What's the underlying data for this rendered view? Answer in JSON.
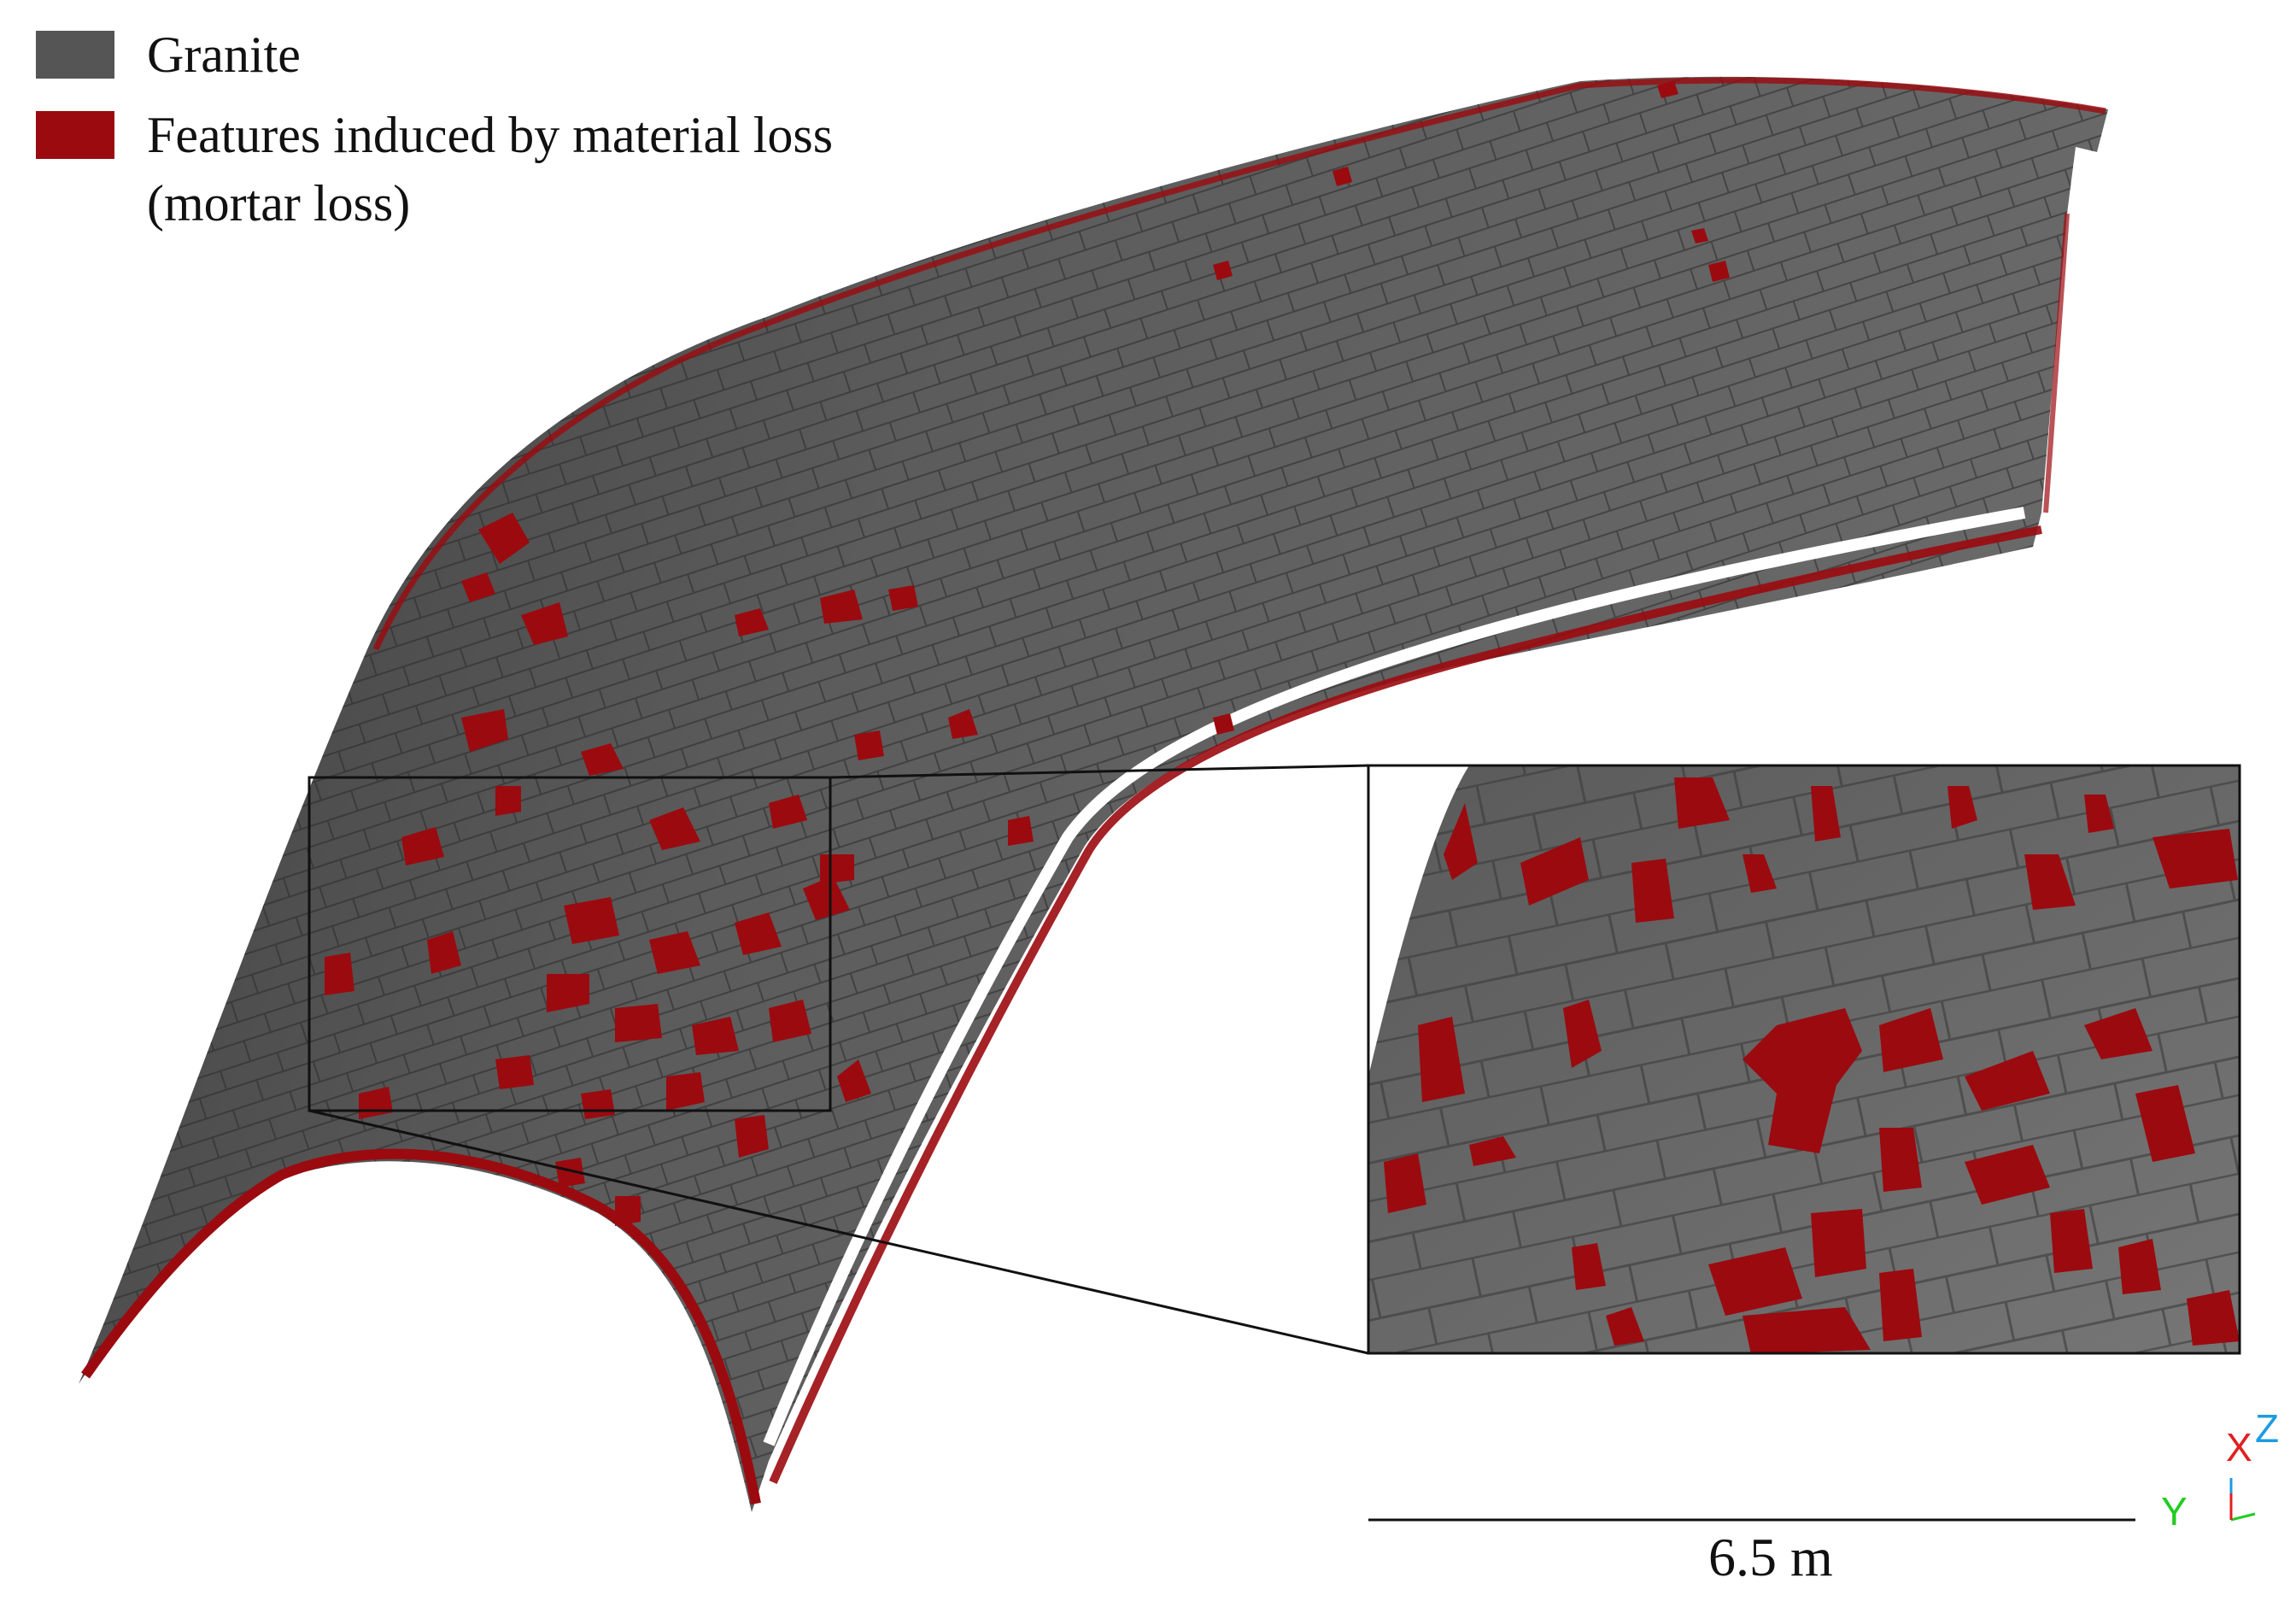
{
  "legend": {
    "items": [
      {
        "label": "Granite",
        "color": "#555555"
      },
      {
        "label": "Features induced by material loss\n(mortar loss)",
        "color": "#9b0a0f"
      }
    ]
  },
  "scale_bar": {
    "label": "6.5 m"
  },
  "axes_triad": {
    "x": "X",
    "y": "Y",
    "z": "Z",
    "x_color": "#e02020",
    "y_color": "#22cc22",
    "z_color": "#1e9be0"
  },
  "colors": {
    "granite": "#555555",
    "mortar_loss": "#9b0a0f",
    "background": "#ffffff"
  }
}
